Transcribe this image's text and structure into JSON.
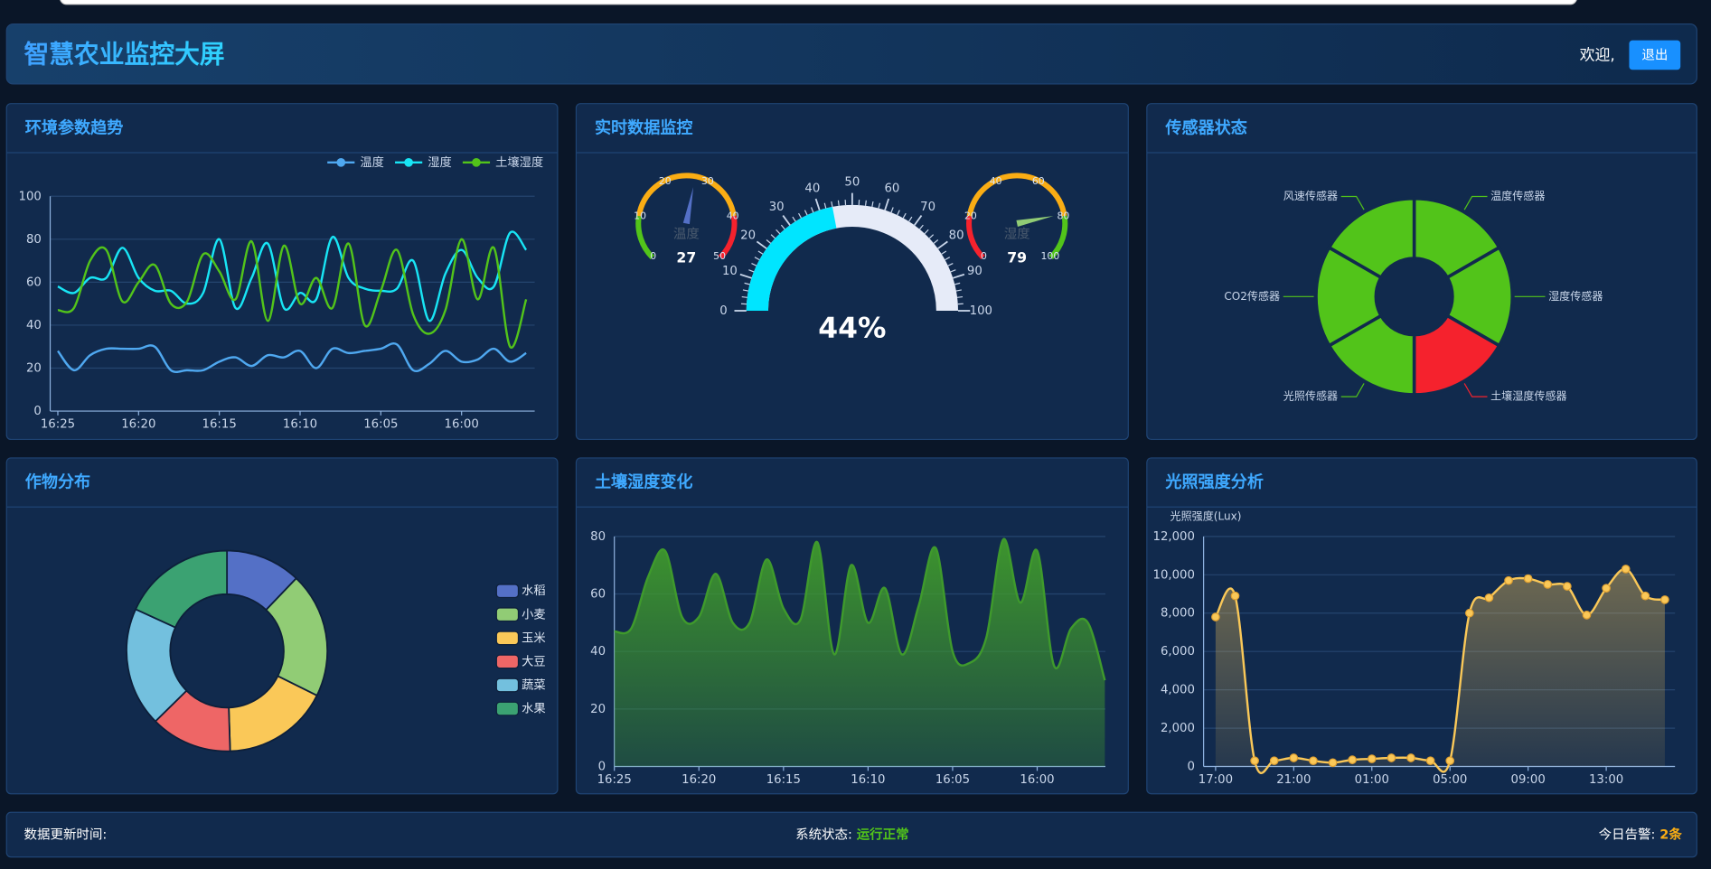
{
  "header": {
    "title": "智慧农业监控大屏",
    "welcome": "欢迎,",
    "logout": "退出"
  },
  "chart_data": [
    {
      "type": "line",
      "title": "环境参数趋势",
      "categories": [
        "16:25",
        null,
        null,
        null,
        null,
        "16:20",
        null,
        null,
        null,
        null,
        "16:15",
        null,
        null,
        null,
        null,
        "16:10",
        null,
        null,
        null,
        null,
        "16:05",
        null,
        null,
        null,
        null,
        "16:00",
        null,
        null,
        null,
        null
      ],
      "series": [
        {
          "name": "温度",
          "color": "#4fa8f0",
          "values": [
            28,
            19,
            26,
            29,
            29,
            29,
            30,
            19,
            19,
            19,
            23,
            25,
            21,
            26,
            25,
            28,
            20,
            29,
            27,
            28,
            29,
            31,
            19,
            22,
            28,
            23,
            24,
            29,
            23,
            27
          ]
        },
        {
          "name": "湿度",
          "color": "#18e5f5",
          "values": [
            58,
            55,
            62,
            62,
            76,
            62,
            56,
            56,
            50,
            55,
            80,
            48,
            62,
            78,
            48,
            55,
            52,
            81,
            62,
            57,
            56,
            57,
            70,
            42,
            64,
            75,
            62,
            58,
            83,
            75
          ]
        },
        {
          "name": "土壤湿度",
          "color": "#52c41a",
          "values": [
            47,
            48,
            70,
            75,
            51,
            60,
            68,
            50,
            51,
            73,
            65,
            52,
            79,
            42,
            77,
            50,
            62,
            48,
            78,
            40,
            56,
            75,
            45,
            36,
            47,
            80,
            52,
            76,
            30,
            52
          ]
        }
      ],
      "ylim": [
        0,
        100
      ],
      "yticks": [
        0,
        20,
        40,
        60,
        80,
        100
      ],
      "grid": true,
      "legend": "top-right"
    },
    {
      "type": "gauge",
      "title": "实时数据监控",
      "gauges": [
        {
          "name": "温度",
          "value": 27,
          "lim": [
            0,
            50
          ],
          "ticks": [
            0,
            10,
            20,
            30,
            40,
            50
          ],
          "bands": [
            {
              "to": 10,
              "color": "#52c41a"
            },
            {
              "to": 40,
              "color": "#faad14"
            },
            {
              "to": 50,
              "color": "#f5222d"
            }
          ],
          "pointer_color": "#5470c6"
        },
        {
          "value": 44,
          "value_label": "44%",
          "lim": [
            0,
            100
          ],
          "ticks": [
            0,
            10,
            20,
            30,
            40,
            50,
            60,
            70,
            80,
            90,
            100
          ],
          "color": "#00e5ff",
          "track_color": "#e6ebf8"
        },
        {
          "name": "湿度",
          "value": 79,
          "lim": [
            0,
            100
          ],
          "ticks": [
            0,
            20,
            40,
            60,
            80,
            100
          ],
          "bands": [
            {
              "to": 20,
              "color": "#f5222d"
            },
            {
              "to": 80,
              "color": "#faad14"
            },
            {
              "to": 100,
              "color": "#52c41a"
            }
          ],
          "pointer_color": "#91cc75"
        }
      ]
    },
    {
      "type": "pie",
      "title": "传感器状态",
      "categories": [
        "温度传感器",
        "湿度传感器",
        "土壤湿度传感器",
        "光照传感器",
        "CO2传感器",
        "风速传感器"
      ],
      "values": [
        1,
        1,
        1,
        1,
        1,
        1
      ],
      "colors": [
        "#52c41a",
        "#52c41a",
        "#f5222d",
        "#52c41a",
        "#52c41a",
        "#52c41a"
      ],
      "labels": "outside"
    },
    {
      "type": "pie",
      "title": "作物分布",
      "categories": [
        "水稻",
        "小麦",
        "玉米",
        "大豆",
        "蔬菜",
        "水果"
      ],
      "values": [
        12,
        20,
        17,
        13,
        19,
        18
      ],
      "colors": [
        "#5470c6",
        "#91cc75",
        "#fac858",
        "#ee6666",
        "#73c0de",
        "#3ba272"
      ],
      "legend": "right"
    },
    {
      "type": "line",
      "title": "土壤湿度变化",
      "categories": [
        "16:25",
        null,
        null,
        null,
        null,
        "16:20",
        null,
        null,
        null,
        null,
        "16:15",
        null,
        null,
        null,
        null,
        "16:10",
        null,
        null,
        null,
        null,
        "16:05",
        null,
        null,
        null,
        null,
        "16:00",
        null,
        null,
        null,
        null
      ],
      "values": [
        47,
        48,
        66,
        75,
        52,
        52,
        67,
        50,
        50,
        72,
        55,
        51,
        78,
        39,
        70,
        50,
        62,
        39,
        56,
        76,
        40,
        36,
        45,
        79,
        57,
        75,
        35,
        48,
        50,
        30
      ],
      "color": "#3f9a2c",
      "area": true,
      "ylim": [
        0,
        80
      ],
      "yticks": [
        0,
        20,
        40,
        60,
        80
      ],
      "grid": true
    },
    {
      "type": "line",
      "title": "光照强度分析",
      "ylabel": "光照强度(Lux)",
      "categories": [
        "17:00",
        null,
        null,
        null,
        "21:00",
        null,
        null,
        null,
        "01:00",
        null,
        null,
        null,
        "05:00",
        null,
        null,
        null,
        "09:00",
        null,
        null,
        null,
        "13:00",
        null,
        null,
        null
      ],
      "values": [
        7800,
        8900,
        300,
        300,
        450,
        300,
        200,
        350,
        400,
        450,
        450,
        300,
        300,
        8000,
        8800,
        9700,
        9800,
        9500,
        9400,
        7900,
        9300,
        10300,
        8900,
        8700
      ],
      "color": "#fac858",
      "area": true,
      "symbols": true,
      "ylim": [
        0,
        12000
      ],
      "yticks": [
        0,
        {
          "value": 2000,
          "label": "2,000"
        },
        {
          "value": 4000,
          "label": "4,000"
        },
        {
          "value": 6000,
          "label": "6,000"
        },
        {
          "value": 8000,
          "label": "8,000"
        },
        {
          "value": 10000,
          "label": "10,000"
        },
        {
          "value": 12000,
          "label": "12,000"
        }
      ],
      "grid": true
    }
  ],
  "footer": {
    "update_label": "数据更新时间:",
    "status_label": "系统状态:",
    "status": "运行正常",
    "alert_label": "今日告警:",
    "alerts": "2条"
  }
}
